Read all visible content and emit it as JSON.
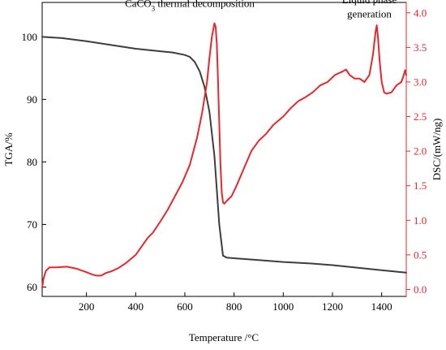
{
  "chart_data": {
    "type": "line",
    "xlabel": "Temperature /°C",
    "ylabel_left": "TGA/%",
    "ylabel_right": "DSC/(mW/ng)",
    "xlim": [
      20,
      1500
    ],
    "ylim_left": [
      58.5,
      105.5
    ],
    "ylim_right": [
      -0.1,
      4.15
    ],
    "x_ticks": [
      200,
      400,
      600,
      800,
      1000,
      1200,
      1400
    ],
    "y_left_ticks": [
      60,
      70,
      80,
      90,
      100
    ],
    "y_right_ticks": [
      0.0,
      0.5,
      1.0,
      1.5,
      2.0,
      2.5,
      3.0,
      3.5,
      4.0
    ],
    "annotations": [
      {
        "parts": [
          {
            "t": "CaCO"
          },
          {
            "t": "3",
            "sub": true
          },
          {
            "t": " thermal decomposition"
          }
        ],
        "x": 620,
        "y": 104.8
      },
      {
        "parts": [
          {
            "t": "Liquid phase"
          }
        ],
        "x": 1350,
        "y": 105.4
      },
      {
        "parts": [
          {
            "t": "generation"
          }
        ],
        "x": 1350,
        "y": 103.1
      }
    ],
    "series": [
      {
        "axis": "left",
        "color": "#3d3d3d",
        "x": [
          20,
          100,
          200,
          300,
          400,
          500,
          550,
          600,
          620,
          640,
          660,
          680,
          700,
          720,
          740,
          755,
          770,
          800,
          900,
          1000,
          1100,
          1200,
          1300,
          1400,
          1500
        ],
        "y": [
          100.0,
          99.8,
          99.3,
          98.7,
          98.1,
          97.7,
          97.5,
          97.1,
          96.8,
          96.0,
          94.5,
          92.0,
          88.0,
          81.0,
          70.0,
          65.0,
          64.7,
          64.6,
          64.3,
          64.0,
          63.8,
          63.5,
          63.1,
          62.7,
          62.3
        ]
      },
      {
        "axis": "right",
        "color": "#e8262c",
        "x": [
          20,
          25,
          35,
          50,
          80,
          120,
          160,
          200,
          220,
          240,
          260,
          280,
          300,
          330,
          360,
          400,
          430,
          450,
          470,
          500,
          530,
          560,
          590,
          620,
          650,
          670,
          690,
          700,
          710,
          720,
          725,
          730,
          735,
          740,
          745,
          750,
          755,
          760,
          770,
          790,
          810,
          840,
          870,
          900,
          930,
          960,
          1000,
          1030,
          1060,
          1090,
          1120,
          1150,
          1180,
          1210,
          1240,
          1255,
          1270,
          1290,
          1310,
          1330,
          1350,
          1365,
          1375,
          1380,
          1385,
          1392,
          1400,
          1410,
          1420,
          1440,
          1460,
          1480,
          1490,
          1495,
          1500
        ],
        "y": [
          0.02,
          0.15,
          0.27,
          0.32,
          0.32,
          0.33,
          0.3,
          0.25,
          0.22,
          0.2,
          0.2,
          0.24,
          0.26,
          0.31,
          0.38,
          0.5,
          0.65,
          0.75,
          0.82,
          0.98,
          1.15,
          1.35,
          1.55,
          1.8,
          2.2,
          2.55,
          3.0,
          3.35,
          3.65,
          3.85,
          3.8,
          3.55,
          3.0,
          2.4,
          1.8,
          1.4,
          1.26,
          1.24,
          1.28,
          1.35,
          1.5,
          1.75,
          2.0,
          2.15,
          2.25,
          2.38,
          2.5,
          2.62,
          2.72,
          2.78,
          2.85,
          2.95,
          3.0,
          3.1,
          3.15,
          3.18,
          3.1,
          3.05,
          3.05,
          3.0,
          3.1,
          3.4,
          3.72,
          3.82,
          3.65,
          3.3,
          3.0,
          2.85,
          2.83,
          2.85,
          2.95,
          3.0,
          3.1,
          3.17,
          3.1
        ]
      }
    ]
  }
}
